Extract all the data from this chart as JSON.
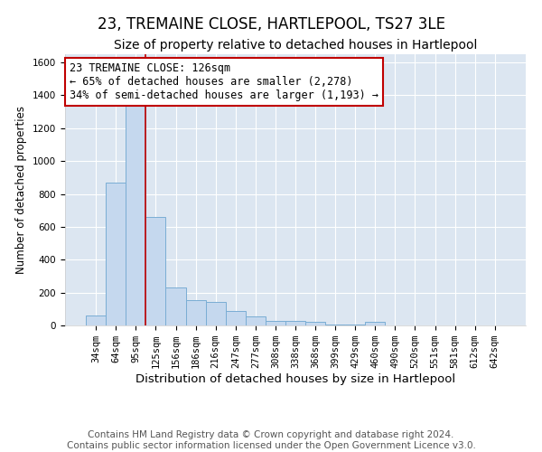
{
  "title": "23, TREMAINE CLOSE, HARTLEPOOL, TS27 3LE",
  "subtitle": "Size of property relative to detached houses in Hartlepool",
  "xlabel": "Distribution of detached houses by size in Hartlepool",
  "ylabel": "Number of detached properties",
  "footer_line1": "Contains HM Land Registry data © Crown copyright and database right 2024.",
  "footer_line2": "Contains public sector information licensed under the Open Government Licence v3.0.",
  "categories": [
    "34sqm",
    "64sqm",
    "95sqm",
    "125sqm",
    "156sqm",
    "186sqm",
    "216sqm",
    "247sqm",
    "277sqm",
    "308sqm",
    "338sqm",
    "368sqm",
    "399sqm",
    "429sqm",
    "460sqm",
    "490sqm",
    "520sqm",
    "551sqm",
    "581sqm",
    "612sqm",
    "642sqm"
  ],
  "values": [
    60,
    870,
    1350,
    660,
    230,
    155,
    145,
    90,
    55,
    30,
    30,
    20,
    5,
    5,
    20,
    0,
    0,
    0,
    0,
    0,
    0
  ],
  "bar_color": "#c5d8ee",
  "bar_edge_color": "#7aadd4",
  "background_color": "#dce6f1",
  "grid_color": "#ffffff",
  "vline_color": "#c00000",
  "vline_pos": 2.5,
  "annotation_text": "23 TREMAINE CLOSE: 126sqm\n← 65% of detached houses are smaller (2,278)\n34% of semi-detached houses are larger (1,193) →",
  "annotation_box_color": "#ffffff",
  "annotation_box_edge_color": "#c00000",
  "ylim": [
    0,
    1650
  ],
  "yticks": [
    0,
    200,
    400,
    600,
    800,
    1000,
    1200,
    1400,
    1600
  ],
  "title_fontsize": 12,
  "subtitle_fontsize": 10,
  "annotation_fontsize": 8.5,
  "xlabel_fontsize": 9.5,
  "ylabel_fontsize": 8.5,
  "footer_fontsize": 7.5,
  "tick_fontsize": 7.5
}
